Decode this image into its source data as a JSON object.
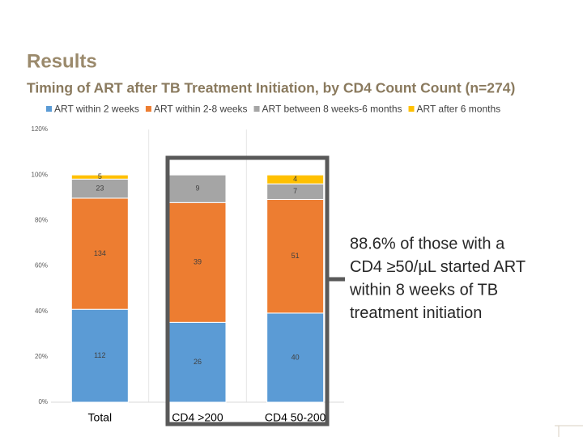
{
  "chart_data": {
    "type": "bar",
    "stack": "percent",
    "heading": "Results",
    "title": "Timing of ART after TB Treatment Initiation, by CD4 Count Count (n=274)",
    "categories": [
      "Total",
      "CD4 >200",
      "CD4 50-200"
    ],
    "series": [
      {
        "name": "ART within 2 weeks",
        "color": "#5b9bd5",
        "values": [
          112,
          26,
          40
        ]
      },
      {
        "name": "ART within 2-8 weeks",
        "color": "#ed7d31",
        "values": [
          134,
          39,
          51
        ]
      },
      {
        "name": "ART between 8 weeks-6 months",
        "color": "#a5a5a5",
        "values": [
          23,
          9,
          7
        ]
      },
      {
        "name": "ART after 6 months",
        "color": "#ffc000",
        "values": [
          5,
          null,
          4
        ]
      }
    ],
    "ylim": [
      0,
      120
    ],
    "yticks": [
      {
        "value": 0,
        "label": "0%"
      },
      {
        "value": 20,
        "label": "20%"
      },
      {
        "value": 40,
        "label": "40%"
      },
      {
        "value": 60,
        "label": "60%"
      },
      {
        "value": 80,
        "label": "80%"
      },
      {
        "value": 100,
        "label": "100%"
      },
      {
        "value": 120,
        "label": "120%"
      }
    ],
    "grid": false,
    "legend": "top",
    "annotation": [
      "88.6% of those with a",
      "CD4 ≥50/µL started ART",
      "within 8 weeks of TB",
      "treatment initiation"
    ]
  }
}
